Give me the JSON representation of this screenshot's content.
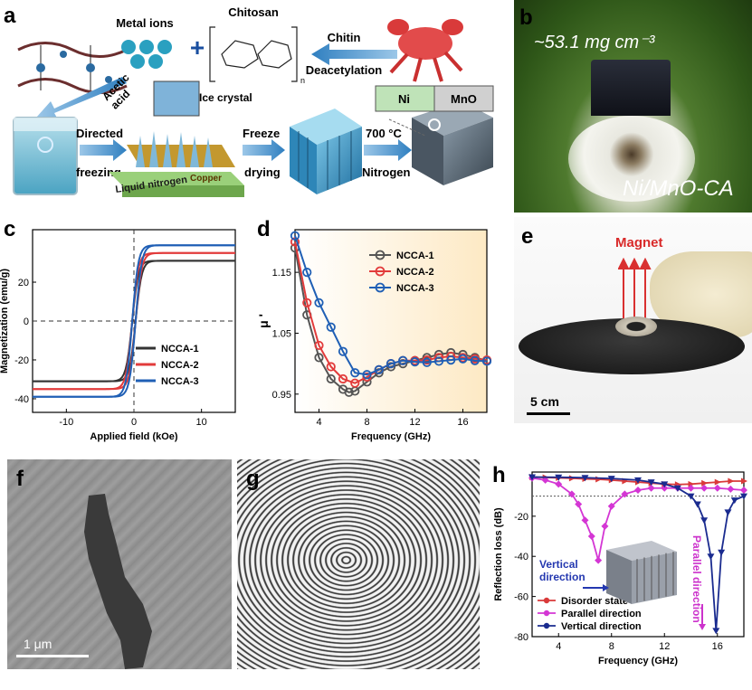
{
  "panels": {
    "a": {
      "letter": "a",
      "labels": {
        "metal_ions": "Metal ions",
        "chitosan": "Chitosan",
        "chitin": "Chitin",
        "deacetylation": "Deacetylation",
        "acetic_acid": "Acetic\nacid",
        "ice_crystal": "Ice crystal",
        "directed": "Directed",
        "freezing": "freezing",
        "freeze": "Freeze",
        "drying": "drying",
        "temp": "700 °C",
        "nitrogen": "Nitrogen",
        "liquid_nitrogen": "Liquid nitrogen",
        "copper": "Copper",
        "ni": "Ni",
        "mno": "MnO",
        "n_sub": "n"
      }
    },
    "b": {
      "letter": "b",
      "density": "~53.1 mg cm⁻³",
      "sample": "Ni/MnO-CA"
    },
    "c": {
      "letter": "c",
      "chart_data": {
        "type": "line",
        "xlabel": "Applied field (kOe)",
        "ylabel": "Magnetization (emu/g)",
        "xlim": [
          -15,
          15
        ],
        "ylim": [
          -47,
          47
        ],
        "xticks": [
          -10,
          0,
          10
        ],
        "yticks": [
          -40,
          -20,
          0,
          20
        ],
        "legend": "lower-right",
        "series": [
          {
            "name": "NCCA-1",
            "color": "#333333",
            "ms": 31,
            "hc": 0.25
          },
          {
            "name": "NCCA-2",
            "color": "#e23b3b",
            "ms": 35,
            "hc": 0.25
          },
          {
            "name": "NCCA-3",
            "color": "#1f5fb5",
            "ms": 39,
            "hc": 0.25
          }
        ]
      }
    },
    "d": {
      "letter": "d",
      "chart_data": {
        "type": "line",
        "xlabel": "Frequency (GHz)",
        "ylabel": "μ '",
        "xlim": [
          2,
          18
        ],
        "ylim": [
          0.92,
          1.22
        ],
        "xticks": [
          4,
          8,
          12,
          16
        ],
        "yticks": [
          0.95,
          1.05,
          1.15
        ],
        "legend": "top-right",
        "series": [
          {
            "name": "NCCA-1",
            "color": "#555555",
            "x": [
              2,
              3,
              4,
              5,
              6,
              6.5,
              7,
              8,
              9,
              10,
              11,
              12,
              13,
              14,
              15,
              16,
              17,
              18
            ],
            "y": [
              1.19,
              1.08,
              1.01,
              0.975,
              0.958,
              0.953,
              0.955,
              0.97,
              0.985,
              0.995,
              1.0,
              1.005,
              1.01,
              1.015,
              1.018,
              1.015,
              1.01,
              1.005
            ]
          },
          {
            "name": "NCCA-2",
            "color": "#e23b3b",
            "x": [
              2,
              3,
              4,
              5,
              6,
              7,
              8,
              9,
              10,
              11,
              12,
              13,
              14,
              15,
              16,
              17,
              18
            ],
            "y": [
              1.2,
              1.1,
              1.03,
              0.995,
              0.975,
              0.968,
              0.978,
              0.99,
              1.0,
              1.005,
              1.005,
              1.006,
              1.01,
              1.012,
              1.01,
              1.008,
              1.006
            ]
          },
          {
            "name": "NCCA-3",
            "color": "#1f5fb5",
            "x": [
              2,
              3,
              4,
              5,
              6,
              7,
              8,
              9,
              10,
              11,
              12,
              13,
              14,
              15,
              16,
              17,
              18
            ],
            "y": [
              1.21,
              1.15,
              1.1,
              1.06,
              1.02,
              0.985,
              0.982,
              0.99,
              1.0,
              1.005,
              1.003,
              1.002,
              1.004,
              1.006,
              1.008,
              1.005,
              1.004
            ]
          }
        ]
      }
    },
    "e": {
      "letter": "e",
      "magnet": "Magnet",
      "scale": "5 cm"
    },
    "f": {
      "letter": "f",
      "scale": "1 μm"
    },
    "g": {
      "letter": "g"
    },
    "h": {
      "letter": "h",
      "annot_vertical": "Vertical\ndirection",
      "annot_parallel": "Parallel direction",
      "chart_data": {
        "type": "line",
        "xlabel": "Frequency (GHz)",
        "ylabel": "Reflection loss (dB)",
        "xlim": [
          2,
          18
        ],
        "ylim": [
          -80,
          2
        ],
        "xticks": [
          4,
          8,
          12,
          16
        ],
        "yticks": [
          -80,
          -60,
          -40,
          -20
        ],
        "legend": "lower-left",
        "threshold": -10,
        "series": [
          {
            "name": "Disorder state",
            "color": "#d93a3a",
            "x": [
              2,
              3,
              4,
              5,
              6,
              7,
              8,
              9,
              10,
              11,
              12,
              13,
              14,
              15,
              16,
              17,
              18
            ],
            "y": [
              -0.5,
              -0.7,
              -0.9,
              -1.1,
              -1.4,
              -1.6,
              -2,
              -2.5,
              -3,
              -3.5,
              -4,
              -4.2,
              -4,
              -3.5,
              -3,
              -2.5,
              -2.5
            ]
          },
          {
            "name": "Parallel direction",
            "color": "#d436d4",
            "x": [
              2,
              3,
              4,
              5,
              5.5,
              6,
              6.5,
              7,
              7.5,
              8,
              9,
              10,
              11,
              12,
              13,
              14,
              15,
              16,
              17,
              18
            ],
            "y": [
              -1,
              -2,
              -4,
              -9,
              -14,
              -22,
              -30,
              -42,
              -25,
              -15,
              -9,
              -7,
              -6,
              -6,
              -6,
              -6,
              -6,
              -6,
              -6.5,
              -7
            ]
          },
          {
            "name": "Vertical direction",
            "color": "#1a2b8f",
            "x": [
              2,
              4,
              6,
              8,
              10,
              11,
              12,
              13,
              14,
              14.5,
              15,
              15.5,
              15.9,
              16.3,
              16.8,
              17.3,
              18
            ],
            "y": [
              -0.5,
              -0.6,
              -0.8,
              -1.2,
              -2,
              -3,
              -4,
              -6,
              -10,
              -14,
              -22,
              -40,
              -77,
              -38,
              -18,
              -12,
              -10
            ]
          }
        ]
      }
    }
  }
}
